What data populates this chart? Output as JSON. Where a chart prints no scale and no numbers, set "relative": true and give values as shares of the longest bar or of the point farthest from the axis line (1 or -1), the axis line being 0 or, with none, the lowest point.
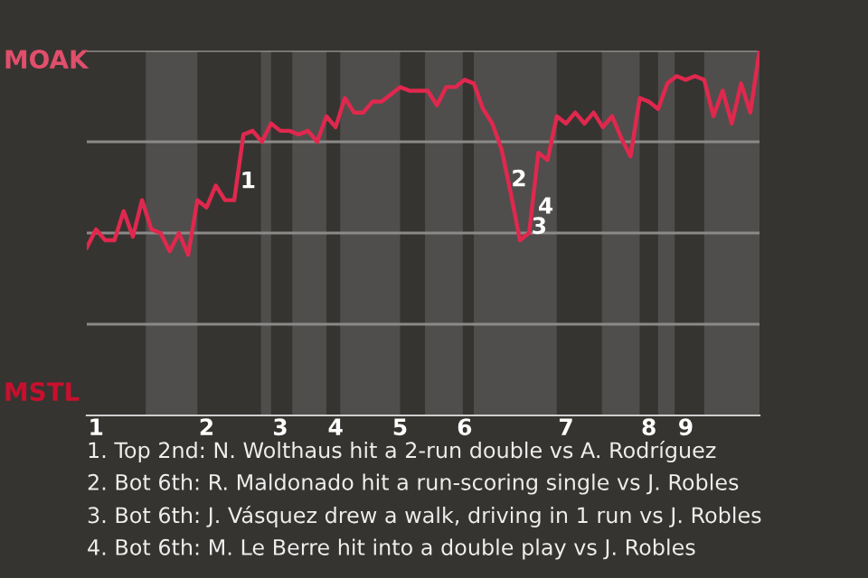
{
  "chart_data": {
    "type": "line",
    "relative": true,
    "categories": [
      null,
      "1",
      null,
      null,
      null,
      null,
      null,
      null,
      null,
      null,
      null,
      null,
      null,
      "2",
      null,
      null,
      null,
      null,
      null,
      null,
      null,
      "3",
      null,
      null,
      null,
      null,
      null,
      "4",
      null,
      null,
      null,
      null,
      null,
      null,
      "5",
      null,
      null,
      null,
      null,
      null,
      null,
      "6",
      null,
      null,
      null,
      null,
      null,
      null,
      null,
      null,
      null,
      null,
      "7",
      null,
      null,
      null,
      null,
      null,
      null,
      null,
      null,
      "8",
      null,
      null,
      null,
      "9",
      null,
      null,
      null,
      null,
      null,
      null,
      null,
      null
    ],
    "series": [
      {
        "color": "#e0284e",
        "values": [
          0.46,
          0.51,
          0.48,
          0.48,
          0.56,
          0.49,
          0.59,
          0.51,
          0.5,
          0.45,
          0.5,
          0.44,
          0.59,
          0.57,
          0.63,
          0.59,
          0.59,
          0.77,
          0.78,
          0.75,
          0.8,
          0.78,
          0.78,
          0.77,
          0.78,
          0.75,
          0.82,
          0.79,
          0.87,
          0.83,
          0.83,
          0.86,
          0.86,
          0.88,
          0.9,
          0.89,
          0.89,
          0.89,
          0.85,
          0.9,
          0.9,
          0.92,
          0.91,
          0.84,
          0.8,
          0.73,
          0.61,
          0.48,
          0.5,
          0.72,
          0.7,
          0.82,
          0.8,
          0.83,
          0.8,
          0.83,
          0.79,
          0.82,
          0.76,
          0.71,
          0.87,
          0.86,
          0.84,
          0.91,
          0.93,
          0.92,
          0.93,
          0.92,
          0.82,
          0.89,
          0.8,
          0.91,
          0.83,
          1
        ]
      }
    ],
    "ref_lines": [
      {
        "axis": "y",
        "value": 0.25,
        "color": "#8c8a88"
      },
      {
        "axis": "y",
        "value": 0.5,
        "color": "#8c8a88"
      },
      {
        "axis": "y",
        "value": 0.75,
        "color": "#8c8a88"
      },
      {
        "axis": "y",
        "value": 1,
        "color": "#8c8a88"
      }
    ],
    "annotations": [
      "MOAK",
      "MSTL",
      "1",
      "2",
      "4",
      "3",
      "1. Top 2nd: N. Wolthaus hit a 2-run double vs A. Rodríguez",
      "2. Bot 6th: R. Maldonado hit a run-scoring single vs J. Robles",
      "3. Bot 6th: J. Vásquez drew a walk, driving in 1 run vs J. Robles",
      "4. Bot 6th: M. Le Berre hit into a double play vs J. Robles"
    ],
    "marker": "none",
    "line_style": "solid"
  }
}
